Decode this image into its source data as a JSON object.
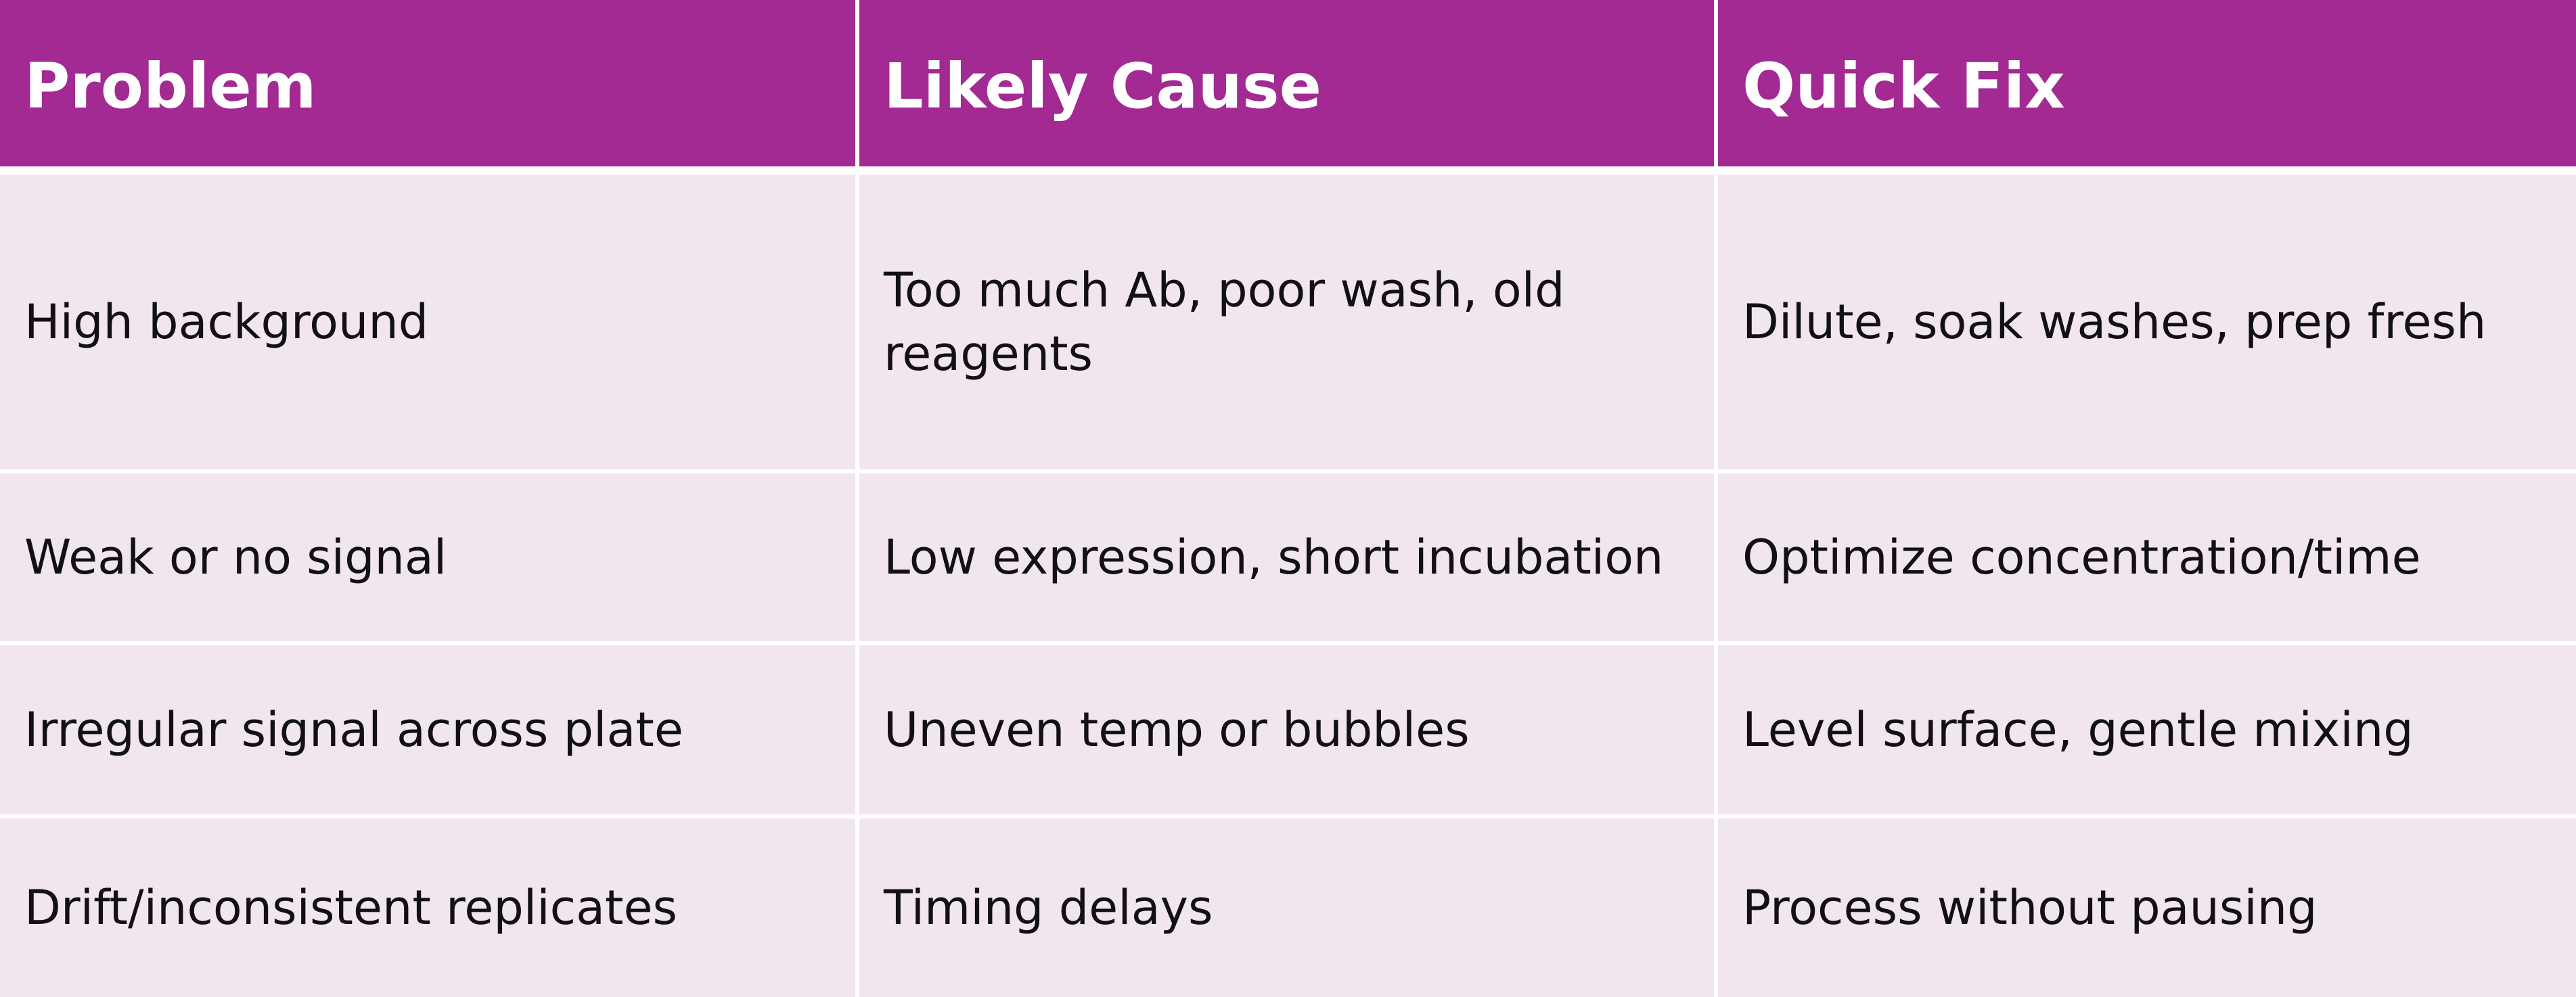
{
  "table": {
    "columns": [
      "Problem",
      "Likely Cause",
      "Quick Fix"
    ],
    "rows": [
      [
        "High background",
        "Too much Ab, poor wash, old reagents",
        "Dilute, soak washes, prep fresh"
      ],
      [
        "Weak or no signal",
        "Low expression, short incubation",
        "Optimize concentration/time"
      ],
      [
        "Irregular signal across plate",
        "Uneven temp or bubbles",
        "Level surface, gentle mixing"
      ],
      [
        "Drift/inconsistent replicates",
        "Timing delays",
        "Process without pausing"
      ]
    ]
  },
  "colors": {
    "header_background": "#a22a92",
    "header_text": "#ffffff",
    "row_background": "#f1e6ef",
    "body_text": "#111111",
    "grid_lines": "#ffffff"
  }
}
